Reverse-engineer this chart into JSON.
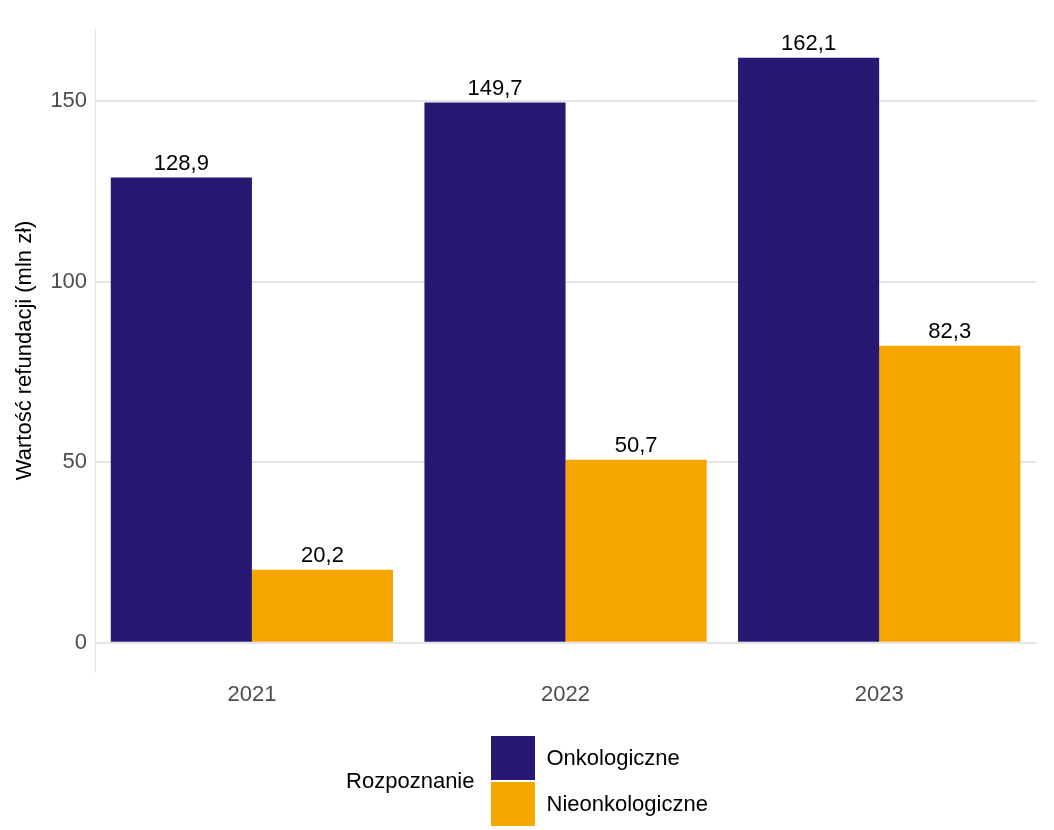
{
  "chart_data": {
    "type": "bar",
    "ylabel": "Wartość refundacji (mln zł)",
    "legend_title": "Rozpoznanie",
    "categories": [
      "2021",
      "2022",
      "2023"
    ],
    "series": [
      {
        "name": "Onkologiczne",
        "color": "#261873",
        "values": [
          128.9,
          149.7,
          162.1
        ],
        "value_labels": [
          "128,9",
          "149,7",
          "162,1"
        ]
      },
      {
        "name": "Nieonkologiczne",
        "color": "#f5a700",
        "values": [
          20.2,
          50.7,
          82.3
        ],
        "value_labels": [
          "20,2",
          "50,7",
          "82,3"
        ]
      }
    ],
    "ylim": [
      -8,
      170
    ],
    "yticks": [
      0,
      50,
      100,
      150
    ],
    "grid": "y",
    "legend": "bottom"
  }
}
